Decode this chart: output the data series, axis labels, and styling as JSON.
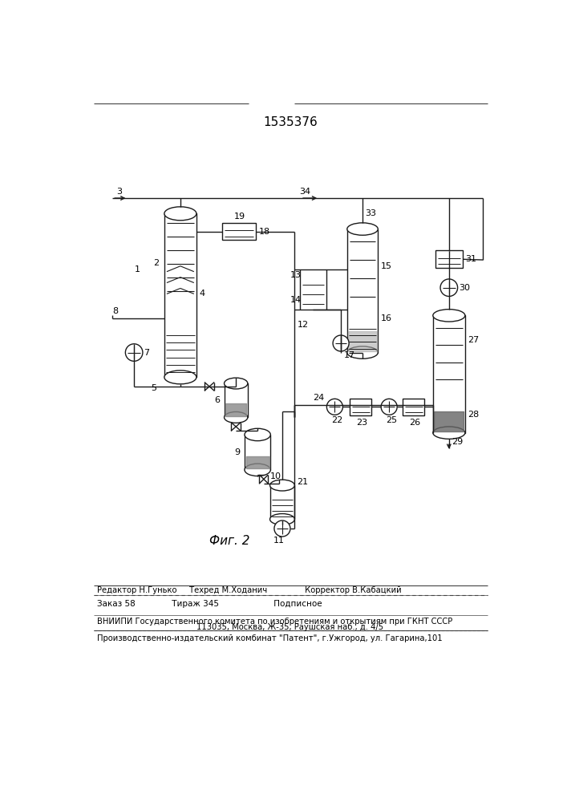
{
  "title_number": "1535376",
  "fig_label": "Фиг. 2",
  "editor_line": "Редактор Н.Гунько     Техред М.Ходанич               Корректор В.Кабацкий",
  "order_line": "Заказ 58              Тираж 345                     Подписное",
  "vnipi_line1": "ВНИИПИ Государственного комитета по изобретениям и открытиям при ГКНТ СССР",
  "vnipi_line2": "113035, Москва, Ж-35, Раушская наб., д. 4/5",
  "production_line": "Производственно-издательский комбинат \"Патент\", г.Ужгород, ул. Гагарина,101",
  "bg_color": "#ffffff",
  "line_color": "#1a1a1a",
  "line_width": 1.0
}
